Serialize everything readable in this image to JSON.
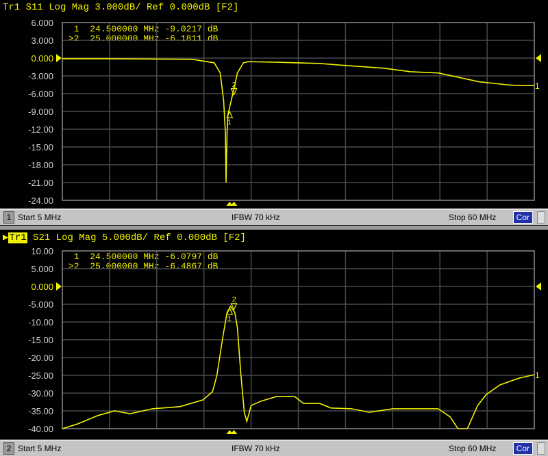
{
  "colors": {
    "trace": "#f2f200",
    "grid": "#4a4a4a",
    "border": "#8c8c8c",
    "background": "#000000",
    "cor_button": "#2231a8",
    "status_bar": "#c4c4c4"
  },
  "channels": [
    {
      "title": {
        "trace": "Tr1",
        "rest": "Tr1 S11 Log Mag 3.000dB/ Ref 0.000dB [F2]"
      },
      "markers": [
        {
          "id": " 1",
          "freq": "24.500000 MHz",
          "value": "-9.0217 dB"
        },
        {
          "id": ">2",
          "freq": "25.000000 MHz",
          "value": "-6.1811 dB"
        }
      ],
      "status": {
        "channel": "1",
        "start": "Start 5 MHz",
        "ifbw": "IFBW 70 kHz",
        "stop": "Stop 60 MHz",
        "cor": "Cor"
      }
    },
    {
      "title": {
        "trace": "Tr1",
        "rest": " S21 Log Mag 5.000dB/ Ref 0.000dB [F2]"
      },
      "markers": [
        {
          "id": " 1",
          "freq": "24.500000 MHz",
          "value": "-6.0797 dB"
        },
        {
          "id": ">2",
          "freq": "25.000000 MHz",
          "value": "-6.4867 dB"
        }
      ],
      "status": {
        "channel": "2",
        "start": "Start 5 MHz",
        "ifbw": "IFBW 70 kHz",
        "stop": "Stop 60 MHz",
        "cor": "Cor"
      }
    }
  ],
  "chart_data": [
    {
      "type": "line",
      "title": "Tr1 S11 Log Mag 3.000dB/ Ref 0.000dB [F2]",
      "xlim": [
        5,
        60
      ],
      "ylim": [
        -24,
        6
      ],
      "grid": true,
      "ref_level": 0,
      "yticks": [
        "6.000",
        "3.000",
        "0.000",
        "-3.000",
        "-6.000",
        "-9.000",
        "-12.00",
        "-15.00",
        "-18.00",
        "-21.00",
        "-24.00"
      ],
      "x": [
        5,
        10,
        15,
        20.1,
        22.7,
        23.4,
        23.8,
        24.0,
        24.08,
        24.2,
        24.3,
        25.0,
        25.4,
        26.1,
        26.7,
        30,
        35,
        37.6,
        42.4,
        45.6,
        48.8,
        53.6,
        56.8,
        58,
        60
      ],
      "y": [
        -0.1,
        -0.1,
        -0.15,
        -0.2,
        -0.8,
        -2.5,
        -7.2,
        -12.5,
        -21.0,
        -12.5,
        -9.5,
        -5.2,
        -2.5,
        -0.8,
        -0.6,
        -0.7,
        -0.9,
        -1.2,
        -1.7,
        -2.3,
        -2.5,
        -4.0,
        -4.5,
        -4.6,
        -4.6
      ],
      "markers": [
        {
          "label": "1",
          "x": 24.5,
          "y": -9.0217
        },
        {
          "label": "2",
          "x": 25.0,
          "y": -6.1811
        }
      ],
      "trace_label": "1"
    },
    {
      "type": "line",
      "title": "Tr1 S21 Log Mag 5.000dB/ Ref 0.000dB [F2]",
      "xlim": [
        5,
        60
      ],
      "ylim": [
        -40,
        10
      ],
      "grid": true,
      "ref_level": 0,
      "yticks": [
        "10.00",
        "5.000",
        "0.000",
        "-5.000",
        "-10.00",
        "-15.00",
        "-20.00",
        "-25.00",
        "-30.00",
        "-35.00",
        "-40.00"
      ],
      "x": [
        5,
        6.76,
        9.15,
        11.1,
        12.9,
        15.5,
        18.7,
        21.4,
        22.5,
        23.0,
        23.7,
        24.2,
        24.6,
        25.1,
        25.4,
        25.8,
        26.2,
        26.5,
        27.0,
        28.1,
        29.9,
        32.1,
        33.1,
        35.0,
        36.3,
        38.7,
        40.8,
        43.5,
        48.8,
        50.2,
        51.1,
        52.2,
        53.4,
        54.4,
        56.0,
        58.2,
        60
      ],
      "y": [
        -40,
        -38.7,
        -36.3,
        -35,
        -35.8,
        -34.4,
        -33.8,
        -31.9,
        -29.6,
        -25.2,
        -14.2,
        -7.3,
        -5.6,
        -7.3,
        -11.7,
        -24.6,
        -35.4,
        -38,
        -33.5,
        -32.3,
        -31,
        -31,
        -32.9,
        -32.9,
        -34.2,
        -34.4,
        -35.4,
        -34.4,
        -34.4,
        -36.7,
        -40,
        -40,
        -33.5,
        -30.4,
        -27.7,
        -25.8,
        -24.8
      ],
      "markers": [
        {
          "label": "1",
          "x": 24.5,
          "y": -6.0797
        },
        {
          "label": "2",
          "x": 25.0,
          "y": -6.4867
        }
      ],
      "trace_label": "1"
    }
  ]
}
